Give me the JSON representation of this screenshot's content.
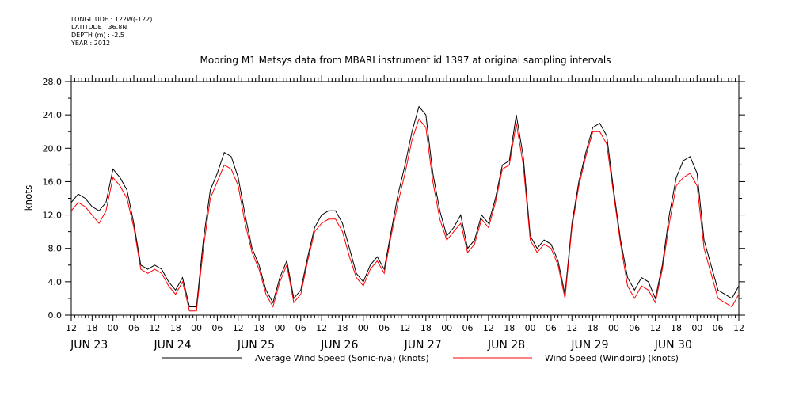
{
  "meta": {
    "longitude": "LONGITUDE : 122W(-122)",
    "latitude": "LATITUDE : 36.8N",
    "depth": "DEPTH (m) : -2.5",
    "year": "YEAR : 2012"
  },
  "chart_data": {
    "type": "line",
    "title": "Mooring M1 Metsys data from MBARI instrument id 1397 at original sampling intervals",
    "xlabel": "",
    "ylabel": "knots",
    "x_unit": "hours since 2012-06-23 00:00",
    "xlim": [
      12,
      204
    ],
    "ylim": [
      0,
      28
    ],
    "y_ticks": [
      "0.0",
      "4.0",
      "8.0",
      "12.0",
      "16.0",
      "20.0",
      "24.0",
      "28.0"
    ],
    "x_hour_ticks": [
      "12",
      "18",
      "00",
      "06",
      "12",
      "18",
      "00",
      "06",
      "12",
      "18",
      "00",
      "06",
      "12",
      "18",
      "00",
      "06",
      "12",
      "18",
      "00",
      "06",
      "12",
      "18",
      "00",
      "06",
      "12",
      "18",
      "00",
      "06",
      "12",
      "18",
      "00",
      "06",
      "12"
    ],
    "x_day_labels": [
      "JUN 23",
      "JUN 24",
      "JUN 25",
      "JUN 26",
      "JUN 27",
      "JUN 28",
      "JUN 29",
      "JUN 30"
    ],
    "grid": false,
    "legend": "bottom",
    "series": [
      {
        "name": "Average Wind Speed (Sonic-n/a) (knots)",
        "color": "#000000",
        "x": [
          12,
          14,
          16,
          18,
          20,
          22,
          24,
          26,
          28,
          30,
          32,
          34,
          36,
          38,
          40,
          42,
          44,
          46,
          48,
          50,
          52,
          54,
          56,
          58,
          60,
          62,
          64,
          66,
          68,
          70,
          72,
          74,
          76,
          78,
          80,
          82,
          84,
          86,
          88,
          90,
          92,
          94,
          96,
          98,
          100,
          102,
          104,
          106,
          108,
          110,
          112,
          114,
          116,
          118,
          120,
          122,
          124,
          126,
          128,
          130,
          132,
          134,
          136,
          138,
          140,
          142,
          144,
          146,
          148,
          150,
          152,
          154,
          156,
          158,
          160,
          162,
          164,
          166,
          168,
          170,
          172,
          174,
          176,
          178,
          180,
          182,
          184,
          186,
          188,
          190,
          192,
          194,
          196,
          198,
          200,
          202,
          204
        ],
        "y": [
          13.5,
          14.5,
          14.0,
          13.0,
          12.5,
          13.5,
          17.5,
          16.5,
          15.0,
          11.0,
          6.0,
          5.5,
          6.0,
          5.5,
          4.0,
          3.0,
          4.5,
          1.0,
          1.0,
          9.0,
          15.0,
          17.0,
          19.5,
          19.0,
          16.5,
          12.0,
          8.0,
          6.0,
          3.0,
          1.5,
          4.5,
          6.5,
          2.0,
          3.0,
          7.0,
          10.5,
          12.0,
          12.5,
          12.5,
          11.0,
          8.0,
          5.0,
          4.0,
          6.0,
          7.0,
          5.5,
          10.0,
          14.5,
          18.0,
          22.0,
          25.0,
          24.0,
          17.0,
          12.5,
          9.5,
          10.5,
          12.0,
          8.0,
          9.0,
          12.0,
          11.0,
          14.0,
          18.0,
          18.5,
          24.0,
          19.0,
          9.5,
          8.0,
          9.0,
          8.5,
          6.5,
          2.5,
          11.0,
          16.0,
          19.5,
          22.5,
          23.0,
          21.5,
          15.0,
          9.0,
          4.5,
          3.0,
          4.5,
          4.0,
          2.0,
          6.0,
          12.0,
          16.5,
          18.5,
          19.0,
          17.0,
          9.0,
          6.0,
          3.0,
          2.5,
          2.0,
          3.5
        ]
      },
      {
        "name": "Wind Speed (Windbird) (knots)",
        "color": "#ff0000",
        "x": [
          12,
          14,
          16,
          18,
          20,
          22,
          24,
          26,
          28,
          30,
          32,
          34,
          36,
          38,
          40,
          42,
          44,
          46,
          48,
          50,
          52,
          54,
          56,
          58,
          60,
          62,
          64,
          66,
          68,
          70,
          72,
          74,
          76,
          78,
          80,
          82,
          84,
          86,
          88,
          90,
          92,
          94,
          96,
          98,
          100,
          102,
          104,
          106,
          108,
          110,
          112,
          114,
          116,
          118,
          120,
          122,
          124,
          126,
          128,
          130,
          132,
          134,
          136,
          138,
          140,
          142,
          144,
          146,
          148,
          150,
          152,
          154,
          156,
          158,
          160,
          162,
          164,
          166,
          168,
          170,
          172,
          174,
          176,
          178,
          180,
          182,
          184,
          186,
          188,
          190,
          192,
          194,
          196,
          198,
          200,
          202,
          204
        ],
        "y": [
          12.5,
          13.5,
          13.0,
          12.0,
          11.0,
          12.5,
          16.5,
          15.5,
          14.0,
          10.5,
          5.5,
          5.0,
          5.5,
          5.0,
          3.5,
          2.5,
          4.0,
          0.5,
          0.5,
          8.0,
          14.0,
          16.0,
          18.0,
          17.5,
          15.5,
          11.0,
          7.5,
          5.5,
          2.5,
          1.0,
          4.0,
          6.0,
          1.5,
          2.5,
          6.5,
          10.0,
          11.0,
          11.5,
          11.5,
          10.0,
          7.0,
          4.5,
          3.5,
          5.5,
          6.5,
          5.0,
          9.5,
          13.5,
          17.0,
          21.0,
          23.5,
          22.5,
          16.0,
          11.5,
          9.0,
          10.0,
          11.0,
          7.5,
          8.5,
          11.5,
          10.5,
          13.5,
          17.5,
          18.0,
          23.0,
          18.0,
          9.0,
          7.5,
          8.5,
          8.0,
          6.0,
          2.0,
          10.5,
          15.5,
          19.0,
          22.0,
          22.0,
          20.5,
          14.5,
          8.5,
          3.5,
          2.0,
          3.5,
          3.0,
          1.5,
          5.5,
          11.0,
          15.5,
          16.5,
          17.0,
          15.5,
          8.0,
          5.0,
          2.0,
          1.5,
          1.0,
          2.5
        ]
      }
    ]
  }
}
